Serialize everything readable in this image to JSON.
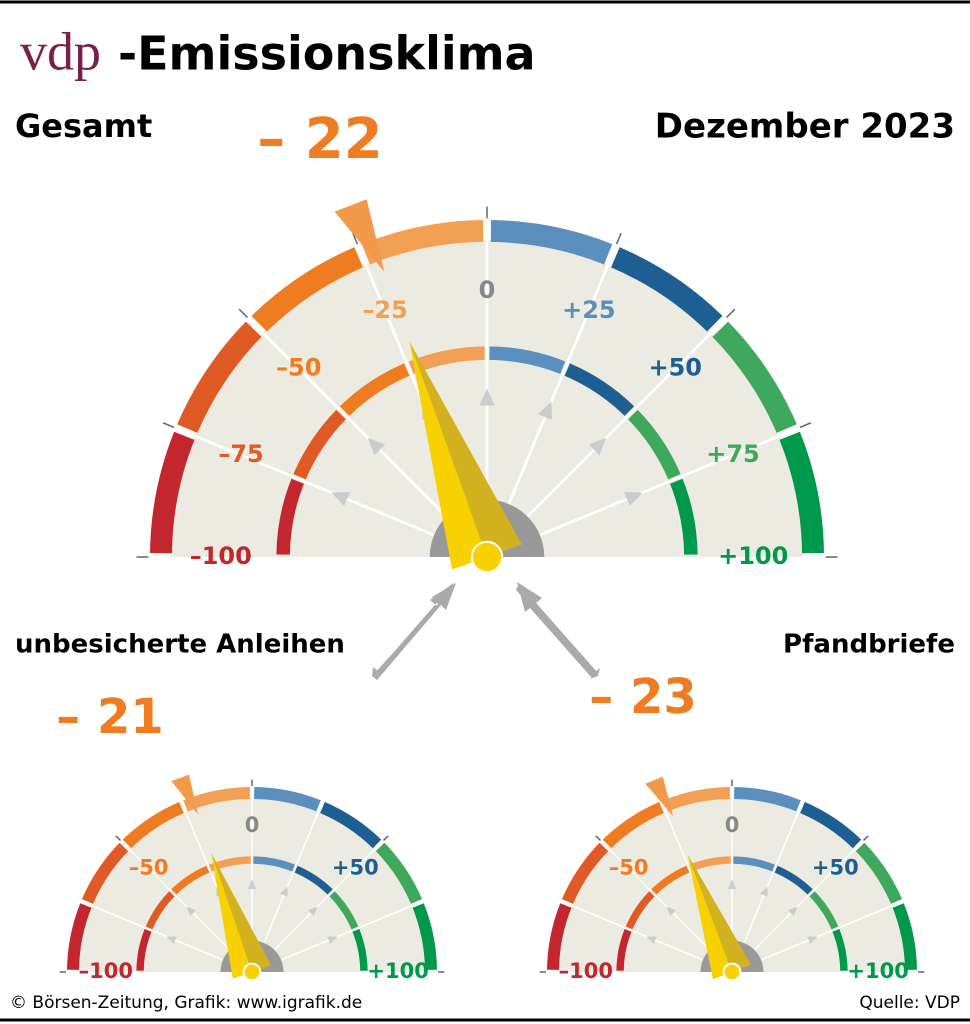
{
  "header": {
    "brand": "vdp",
    "title": "-Emissionsklima",
    "date": "Dezember 2023"
  },
  "chart_data": [
    {
      "type": "gauge",
      "title": "Gesamt",
      "values": [
        -22
      ],
      "value_labels": [
        "– 22"
      ],
      "xlim": [
        -100,
        100
      ],
      "xticks": [
        {
          "value": -100,
          "label": "–100"
        },
        {
          "value": -75,
          "label": "–75"
        },
        {
          "value": -50,
          "label": "–50"
        },
        {
          "value": -25,
          "label": "–25"
        },
        0,
        {
          "value": 25,
          "label": "+25"
        },
        {
          "value": 50,
          "label": "+50"
        },
        {
          "value": 75,
          "label": "+75"
        },
        {
          "value": 100,
          "label": "+100"
        }
      ],
      "colors": [
        "#c4262e",
        "#e05a25",
        "#f07c22",
        "#f3a055",
        "#5b8fbe",
        "#1e5f93",
        "#3ea95c",
        "#00984a"
      ]
    },
    {
      "type": "gauge",
      "title": "unbesicherte Anleihen",
      "values": [
        -21
      ],
      "value_labels": [
        "– 21"
      ],
      "xlim": [
        -100,
        100
      ],
      "xticks": [
        {
          "value": -100,
          "label": "–100"
        },
        {
          "value": -50,
          "label": "–50"
        },
        0,
        {
          "value": 50,
          "label": "+50"
        },
        {
          "value": 100,
          "label": "+100"
        }
      ],
      "colors": [
        "#c4262e",
        "#e05a25",
        "#f07c22",
        "#f3a055",
        "#5b8fbe",
        "#1e5f93",
        "#3ea95c",
        "#00984a"
      ]
    },
    {
      "type": "gauge",
      "title": "Pfandbriefe",
      "values": [
        -23
      ],
      "value_labels": [
        "– 23"
      ],
      "xlim": [
        -100,
        100
      ],
      "xticks": [
        {
          "value": -100,
          "label": "–100"
        },
        {
          "value": -50,
          "label": "–50"
        },
        0,
        {
          "value": 50,
          "label": "+50"
        },
        {
          "value": 100,
          "label": "+100"
        }
      ],
      "colors": [
        "#c4262e",
        "#e05a25",
        "#f07c22",
        "#f3a055",
        "#5b8fbe",
        "#1e5f93",
        "#3ea95c",
        "#00984a"
      ]
    }
  ],
  "footer": {
    "credit": "© Börsen-Zeitung, Grafik: www.igrafik.de",
    "source": "Quelle: VDP"
  }
}
